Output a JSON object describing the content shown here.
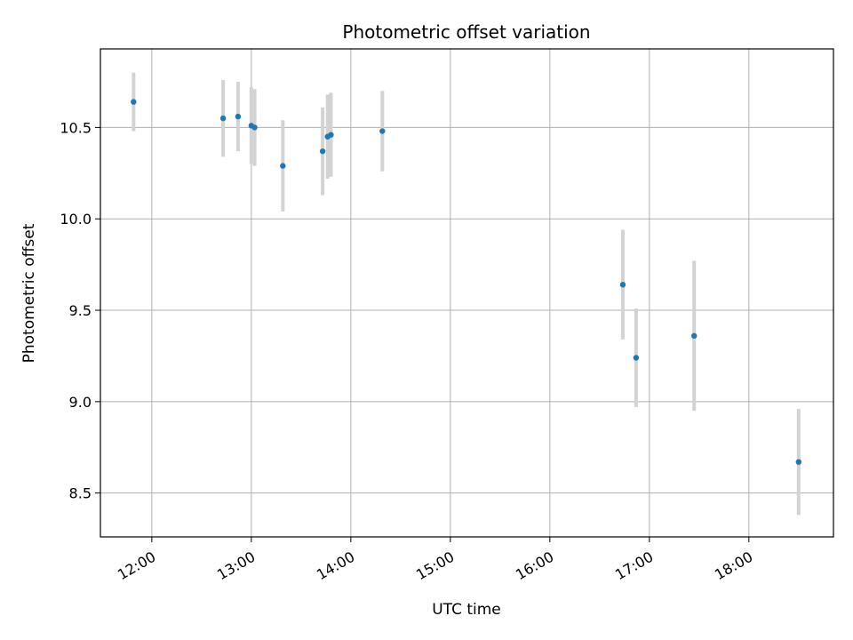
{
  "chart_data": {
    "type": "scatter",
    "title": "Photometric offset variation",
    "xlabel": "UTC time",
    "ylabel": "Photometric offset",
    "x_type": "time",
    "xlim": [
      "11:29",
      "18:51"
    ],
    "ylim": [
      8.26,
      10.93
    ],
    "x_ticks": [
      "12:00",
      "13:00",
      "14:00",
      "15:00",
      "16:00",
      "17:00",
      "18:00"
    ],
    "y_ticks": [
      8.5,
      9.0,
      9.5,
      10.0,
      10.5
    ],
    "y_tick_labels": [
      "8.5",
      "9.0",
      "9.5",
      "10.0",
      "10.5"
    ],
    "grid": true,
    "colors": {
      "points": "#1f77b4",
      "errorbars": "#d3d3d3",
      "grid": "#b0b0b0"
    },
    "points": [
      {
        "x": "11:49",
        "y": 10.64,
        "err": 0.16
      },
      {
        "x": "12:43",
        "y": 10.55,
        "err": 0.21
      },
      {
        "x": "12:52",
        "y": 10.56,
        "err": 0.19
      },
      {
        "x": "13:00",
        "y": 10.51,
        "err": 0.21
      },
      {
        "x": "13:02",
        "y": 10.5,
        "err": 0.21
      },
      {
        "x": "13:19",
        "y": 10.29,
        "err": 0.25
      },
      {
        "x": "13:43",
        "y": 10.37,
        "err": 0.24
      },
      {
        "x": "13:46",
        "y": 10.45,
        "err": 0.23
      },
      {
        "x": "13:48",
        "y": 10.46,
        "err": 0.23
      },
      {
        "x": "14:19",
        "y": 10.48,
        "err": 0.22
      },
      {
        "x": "16:44",
        "y": 9.64,
        "err": 0.3
      },
      {
        "x": "16:52",
        "y": 9.24,
        "err": 0.27
      },
      {
        "x": "17:27",
        "y": 9.36,
        "err": 0.41
      },
      {
        "x": "18:30",
        "y": 8.67,
        "err": 0.29
      }
    ]
  }
}
